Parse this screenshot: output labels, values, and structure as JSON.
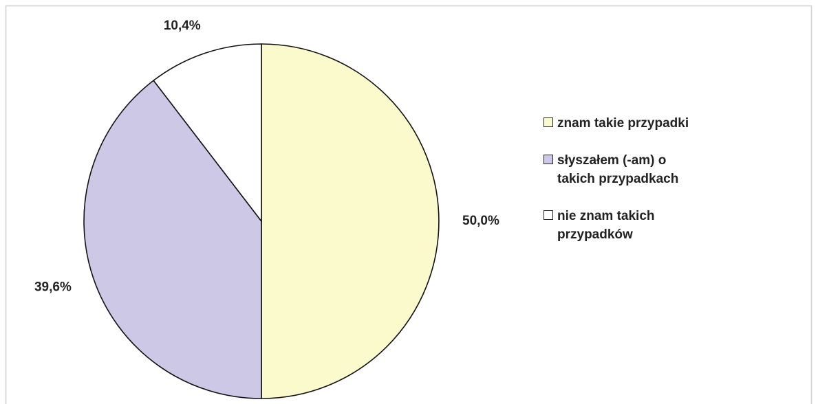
{
  "chart_data": {
    "type": "pie",
    "categories": [
      "znam takie przypadki",
      "słyszałem (-am) o takich przypadkach",
      "nie znam takich przypadków"
    ],
    "values": [
      50.0,
      39.6,
      10.4
    ],
    "value_labels": [
      "50,0%",
      "39,6%",
      "10,4%"
    ],
    "colors": [
      "#fafacc",
      "#ccc8e6",
      "#ffffff"
    ],
    "legend": "right"
  }
}
